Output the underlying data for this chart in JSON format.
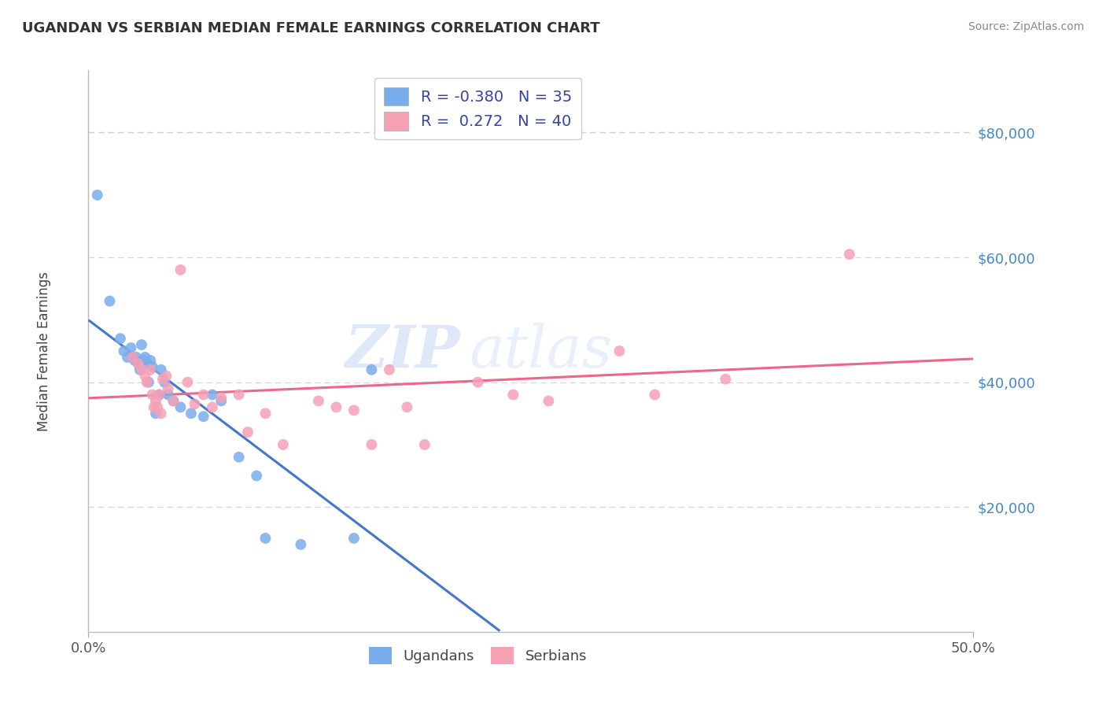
{
  "title": "UGANDAN VS SERBIAN MEDIAN FEMALE EARNINGS CORRELATION CHART",
  "source": "Source: ZipAtlas.com",
  "ylabel_label": "Median Female Earnings",
  "xlim": [
    0.0,
    0.5
  ],
  "ylim": [
    0,
    90000
  ],
  "ytick_positions": [
    20000,
    40000,
    60000,
    80000
  ],
  "ytick_labels": [
    "$20,000",
    "$40,000",
    "$60,000",
    "$80,000"
  ],
  "xtick_positions": [
    0.0,
    0.5
  ],
  "xtick_labels": [
    "0.0%",
    "50.0%"
  ],
  "ugandan_color": "#7aadee",
  "serbian_color": "#f5a0b5",
  "ugandan_line_color": "#4477cc",
  "serbian_line_color": "#ee6688",
  "r_ugandan": -0.38,
  "n_ugandan": 35,
  "r_serbian": 0.272,
  "n_serbian": 40,
  "watermark_zip": "ZIP",
  "watermark_atlas": "atlas",
  "background_color": "#ffffff",
  "grid_color": "#cccccc",
  "title_color": "#333333",
  "source_color": "#888888",
  "tick_color_y": "#4488cc",
  "tick_color_x": "#555555",
  "legend_text_color": "#3344aa",
  "ylabel_color": "#444444",
  "ugandan_x": [
    0.005,
    0.012,
    0.018,
    0.02,
    0.022,
    0.024,
    0.025,
    0.026,
    0.027,
    0.028,
    0.029,
    0.03,
    0.031,
    0.032,
    0.033,
    0.034,
    0.035,
    0.036,
    0.038,
    0.04,
    0.041,
    0.043,
    0.045,
    0.048,
    0.052,
    0.058,
    0.065,
    0.07,
    0.075,
    0.085,
    0.095,
    0.1,
    0.12,
    0.15,
    0.16
  ],
  "ugandan_y": [
    70000,
    53000,
    47000,
    45000,
    44000,
    45500,
    44000,
    43500,
    44000,
    43000,
    42000,
    46000,
    43500,
    44000,
    43000,
    40000,
    43500,
    42500,
    35000,
    38000,
    42000,
    40000,
    38000,
    37000,
    36000,
    35000,
    34500,
    38000,
    37000,
    28000,
    25000,
    15000,
    14000,
    15000,
    42000
  ],
  "serbian_x": [
    0.025,
    0.028,
    0.03,
    0.032,
    0.033,
    0.035,
    0.036,
    0.037,
    0.038,
    0.039,
    0.04,
    0.041,
    0.042,
    0.044,
    0.045,
    0.048,
    0.052,
    0.056,
    0.06,
    0.065,
    0.07,
    0.075,
    0.085,
    0.09,
    0.1,
    0.11,
    0.13,
    0.14,
    0.15,
    0.16,
    0.17,
    0.18,
    0.19,
    0.22,
    0.24,
    0.26,
    0.3,
    0.32,
    0.36,
    0.43
  ],
  "serbian_y": [
    44000,
    43000,
    42000,
    41000,
    40000,
    42000,
    38000,
    36000,
    37000,
    36000,
    38000,
    35000,
    40500,
    41000,
    39000,
    37000,
    58000,
    40000,
    36500,
    38000,
    36000,
    37500,
    38000,
    32000,
    35000,
    30000,
    37000,
    36000,
    35500,
    30000,
    42000,
    36000,
    30000,
    40000,
    38000,
    37000,
    45000,
    38000,
    40500,
    60500
  ]
}
